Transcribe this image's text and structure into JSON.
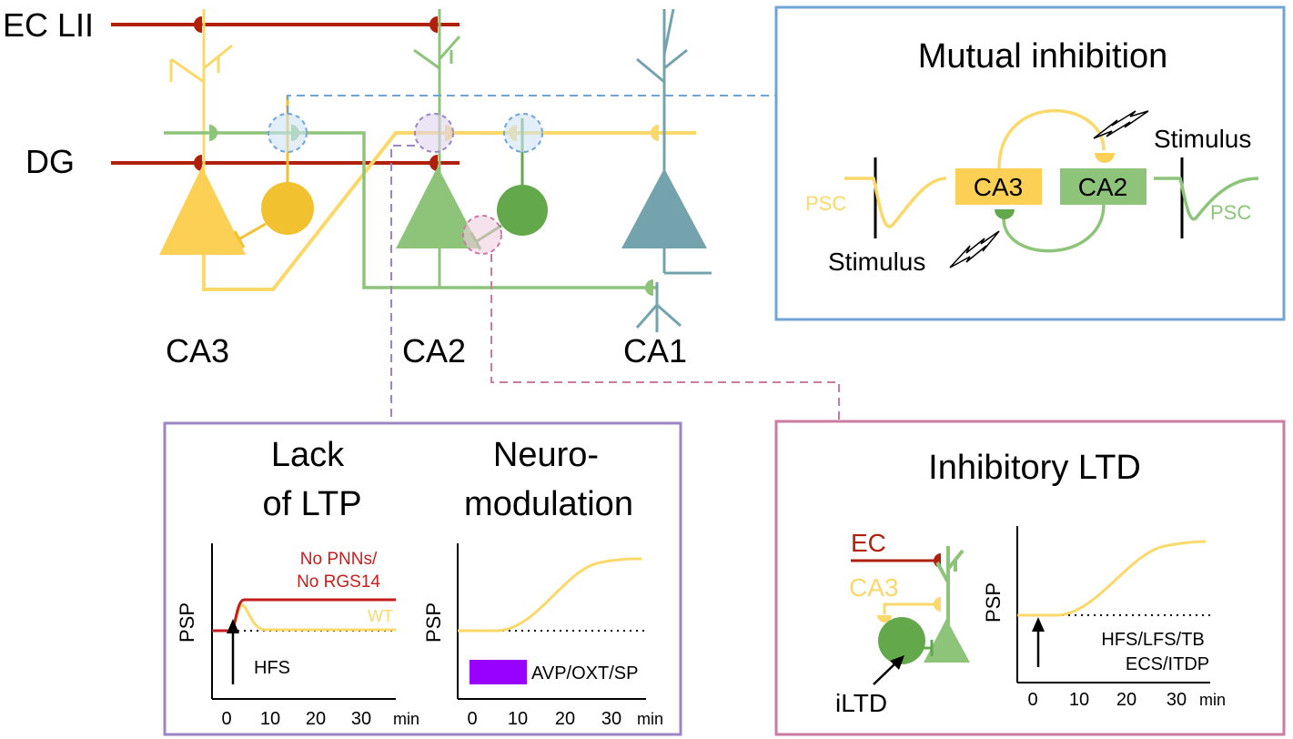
{
  "colors": {
    "ec": "#b0200c",
    "ca3": "#fad96a",
    "ca3_cell": "#fcd054",
    "ca3_interneuron": "#f2c130",
    "ca2": "#8ec47a",
    "ca2_interneuron": "#64a84c",
    "ca1": "#74a3ad",
    "box_mutual": "#6fa5d6",
    "box_lack": "#9c85c6",
    "box_ltd": "#cb7aa2",
    "neuromod_bar": "#9800ff"
  },
  "labels": {
    "ec_lii": "EC LII",
    "dg": "DG",
    "ca3": "CA3",
    "ca2": "CA2",
    "ca1": "CA1"
  },
  "mutual": {
    "title": "Mutual inhibition",
    "ca3": "CA3",
    "ca2": "CA2",
    "stimulus_top": "Stimulus",
    "stimulus_bottom": "Stimulus",
    "psc_left": "PSC",
    "psc_right": "PSC"
  },
  "lack": {
    "title_line1": "Lack",
    "title_line2": "of LTP",
    "ylabel": "PSP",
    "legend_red_line1": "No PNNs/",
    "legend_red_line2": "No RGS14",
    "legend_wt": "WT",
    "hfs": "HFS",
    "ticks": [
      "0",
      "10",
      "20",
      "30"
    ],
    "unit": "min"
  },
  "neuromod": {
    "title_line1": "Neuro-",
    "title_line2": "modulation",
    "ylabel": "PSP",
    "bar_label": "AVP/OXT/SP",
    "ticks": [
      "0",
      "10",
      "20",
      "30"
    ],
    "unit": "min"
  },
  "ltd": {
    "title": "Inhibitory LTD",
    "ec": "EC",
    "ca3": "CA3",
    "iltd": "iLTD",
    "ylabel": "PSP",
    "protocol_line1": "HFS/LFS/TB",
    "protocol_line2": "ECS/ITDP",
    "ticks": [
      "0",
      "10",
      "20",
      "30"
    ],
    "unit": "min"
  }
}
